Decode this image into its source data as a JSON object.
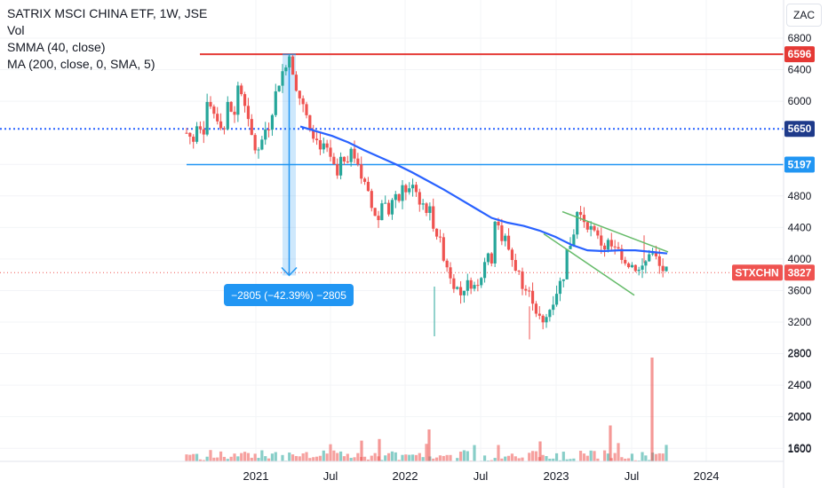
{
  "legend": {
    "title": "SATRIX MSCI CHINA ETF, 1W, JSE",
    "line2": "Vol",
    "line3": "SMMA (40, close)",
    "line4": "MA (200, close, 0, SMA, 5)"
  },
  "currency_label": "ZAC",
  "measure_label": "−2805 (−42.39%) −2805",
  "ticker_label": "STXCHN",
  "colors": {
    "up": "#26a69a",
    "down": "#ef5350",
    "resistance": "#e53935",
    "support": "#2962ff",
    "smma": "#2962ff",
    "channel": "#66bb6a",
    "measure": "#2196f3"
  },
  "chart_data": {
    "type": "candlestick",
    "y_axis": {
      "ticks": [
        1600,
        2000,
        2400,
        2800,
        3200,
        3600,
        4000,
        4400,
        4800,
        5200,
        6000,
        6400,
        6800
      ],
      "range": [
        1480,
        6850
      ]
    },
    "x_axis": {
      "ticks": [
        "2021",
        "Jul",
        "2022",
        "Jul",
        "2023",
        "Jul",
        "2024"
      ]
    },
    "horizontal_levels": [
      {
        "value": 6596,
        "label": "6596",
        "style": "solid",
        "color": "#e53935"
      },
      {
        "value": 5650,
        "label": "5650",
        "style": "dotted",
        "color": "#2962ff"
      },
      {
        "value": 5197,
        "label": "5197",
        "style": "solid",
        "color": "#2196f3"
      }
    ],
    "last_price": {
      "value": 3827,
      "label": "3827"
    },
    "measure": {
      "from": 6596,
      "to": 3791,
      "change": -2805,
      "percent": -42.39
    },
    "price_path": [
      [
        5600,
        5500
      ],
      [
        5750,
        5650
      ],
      [
        6000,
        5850
      ],
      [
        5800,
        5650
      ],
      [
        5950,
        5800
      ],
      [
        6200,
        6000
      ],
      [
        5700,
        5400
      ],
      [
        5350,
        5650
      ],
      [
        5700,
        6100
      ],
      [
        6250,
        6500
      ],
      [
        6590,
        6200
      ],
      [
        6050,
        5800
      ],
      [
        5700,
        5500
      ],
      [
        5450,
        5350
      ],
      [
        5250,
        5050
      ],
      [
        5250,
        5150
      ],
      [
        5450,
        5250
      ],
      [
        5050,
        4800
      ],
      [
        4650,
        4500
      ],
      [
        4750,
        4600
      ],
      [
        4750,
        4750
      ],
      [
        4900,
        4850
      ],
      [
        5000,
        4750
      ],
      [
        4700,
        4600
      ],
      [
        4450,
        4200
      ],
      [
        4050,
        3800
      ],
      [
        3700,
        3550
      ],
      [
        3650,
        3700
      ],
      [
        3650,
        3800
      ],
      [
        4000,
        4000
      ],
      [
        4500,
        4250
      ],
      [
        4250,
        4000
      ],
      [
        3900,
        3700
      ],
      [
        3600,
        3500
      ],
      [
        3350,
        3150
      ],
      [
        3250,
        3500
      ],
      [
        3600,
        3800
      ],
      [
        4100,
        4300
      ],
      [
        4600,
        4500
      ],
      [
        4450,
        4300
      ],
      [
        4250,
        4150
      ],
      [
        4200,
        4100
      ],
      [
        4100,
        4000
      ],
      [
        3950,
        3900
      ],
      [
        3850,
        3950
      ],
      [
        4100,
        4000
      ],
      [
        3900,
        3827
      ]
    ],
    "smma": [
      [
        5680
      ],
      [
        5620
      ],
      [
        5560
      ],
      [
        5480
      ],
      [
        5380
      ],
      [
        5290
      ],
      [
        5200
      ],
      [
        5100
      ],
      [
        4990
      ],
      [
        4880
      ],
      [
        4760
      ],
      [
        4640
      ],
      [
        4520
      ],
      [
        4460
      ],
      [
        4420
      ],
      [
        4360
      ],
      [
        4280
      ],
      [
        4180
      ],
      [
        4110
      ],
      [
        4100
      ],
      [
        4110
      ],
      [
        4110
      ],
      [
        4090
      ],
      [
        4070
      ]
    ],
    "channel": {
      "upper": [
        4600,
        4090
      ],
      "lower": [
        4320,
        3540
      ]
    },
    "volume": {
      "ticks": [
        1600,
        2000,
        2400,
        2800
      ]
    }
  }
}
